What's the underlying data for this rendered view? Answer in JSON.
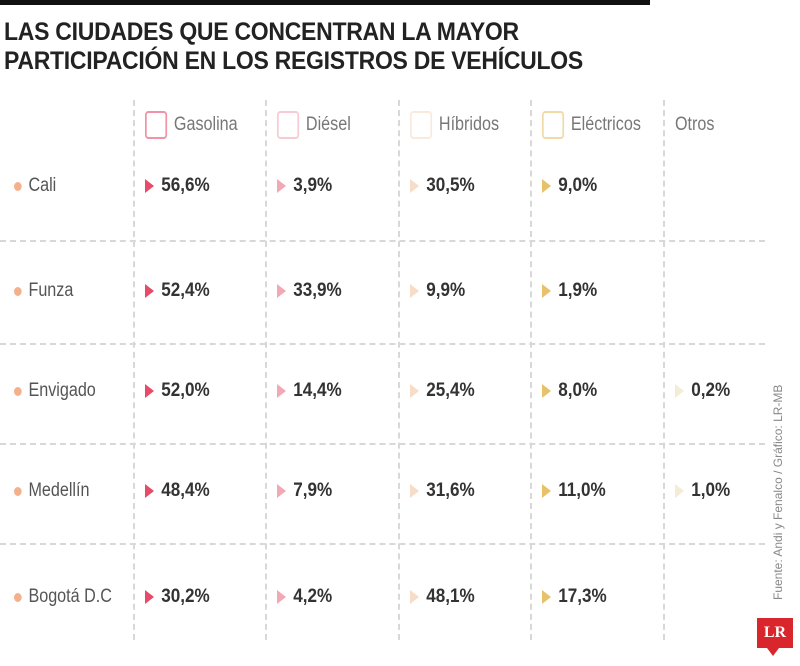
{
  "title_lines": [
    "LAS CIUDADES QUE CONCENTRAN LA MAYOR",
    "PARTICIPACIÓN EN LOS REGISTROS DE VEHÍCULOS"
  ],
  "columns": [
    {
      "label": "Gasolina",
      "icon": "fuel-pump-icon",
      "color": "#e84a6a"
    },
    {
      "label": "Diésel",
      "icon": "fuel-can-icon",
      "color": "#f3a8b5"
    },
    {
      "label": "Híbridos",
      "icon": "hybrid-icon",
      "color": "#f7dcc8"
    },
    {
      "label": "Eléctricos",
      "icon": "electric-plug-icon",
      "color": "#e8c26a"
    },
    {
      "label": "Otros",
      "icon": "",
      "color": "#f5ecd5"
    }
  ],
  "source": "Fuente: Andi y Fenalco / Gráfico: LR-MB",
  "logo": "LR",
  "chart_data": {
    "type": "table",
    "columns": [
      "Gasolina",
      "Diésel",
      "Híbridos",
      "Eléctricos",
      "Otros"
    ],
    "rows": [
      {
        "city": "Cali",
        "values": [
          "56,6%",
          "3,9%",
          "30,5%",
          "9,0%",
          ""
        ]
      },
      {
        "city": "Funza",
        "values": [
          "52,4%",
          "33,9%",
          "9,9%",
          "1,9%",
          ""
        ]
      },
      {
        "city": "Envigado",
        "values": [
          "52,0%",
          "14,4%",
          "25,4%",
          "8,0%",
          "0,2%"
        ]
      },
      {
        "city": "Medellín",
        "values": [
          "48,4%",
          "7,9%",
          "31,6%",
          "11,0%",
          "1,0%"
        ]
      },
      {
        "city": "Bogotá D.C",
        "values": [
          "30,2%",
          "4,2%",
          "48,1%",
          "17,3%",
          ""
        ]
      }
    ]
  }
}
